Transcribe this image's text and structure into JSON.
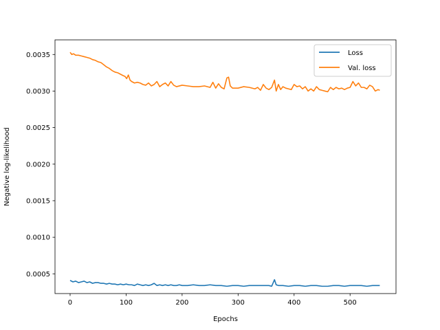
{
  "chart_data": {
    "type": "line",
    "title": "",
    "xlabel": "Epochs",
    "ylabel": "Negative log-likelihood",
    "xlim": [
      -27,
      582
    ],
    "ylim": [
      0.00023,
      0.0037
    ],
    "xticks": [
      0,
      100,
      200,
      300,
      400,
      500
    ],
    "xtick_labels": [
      "0",
      "100",
      "200",
      "300",
      "400",
      "500"
    ],
    "yticks": [
      0.0005,
      0.001,
      0.0015,
      0.002,
      0.0025,
      0.003,
      0.0035
    ],
    "ytick_labels": [
      "0.0005",
      "0.0010",
      "0.0015",
      "0.0020",
      "0.0025",
      "0.0030",
      "0.0035"
    ],
    "grid": false,
    "legend_position": "top-right",
    "series": [
      {
        "name": "Loss",
        "color": "#1f77b4",
        "x": [
          0,
          5,
          10,
          15,
          20,
          25,
          30,
          35,
          40,
          45,
          50,
          55,
          60,
          65,
          70,
          75,
          80,
          85,
          90,
          95,
          100,
          105,
          110,
          115,
          120,
          125,
          130,
          135,
          140,
          145,
          150,
          155,
          160,
          165,
          170,
          175,
          180,
          185,
          190,
          195,
          200,
          210,
          220,
          230,
          240,
          250,
          260,
          270,
          280,
          290,
          300,
          310,
          320,
          330,
          340,
          350,
          355,
          360,
          365,
          368,
          372,
          380,
          390,
          400,
          410,
          420,
          430,
          440,
          450,
          460,
          470,
          480,
          490,
          500,
          510,
          520,
          530,
          540,
          550,
          553
        ],
        "y": [
          0.00041,
          0.00039,
          0.0004,
          0.00038,
          0.00039,
          0.0004,
          0.00038,
          0.00039,
          0.00037,
          0.00038,
          0.00038,
          0.00037,
          0.00037,
          0.00036,
          0.00037,
          0.00036,
          0.00036,
          0.00035,
          0.00036,
          0.00035,
          0.00036,
          0.00035,
          0.00035,
          0.00034,
          0.00036,
          0.00035,
          0.00034,
          0.00035,
          0.00034,
          0.00035,
          0.00037,
          0.00034,
          0.00035,
          0.00034,
          0.00035,
          0.00034,
          0.00035,
          0.00034,
          0.00034,
          0.00035,
          0.00034,
          0.00034,
          0.00035,
          0.00034,
          0.00034,
          0.00035,
          0.00034,
          0.00034,
          0.00033,
          0.00034,
          0.00034,
          0.00033,
          0.00034,
          0.00034,
          0.00034,
          0.00034,
          0.00034,
          0.00033,
          0.00042,
          0.00035,
          0.00034,
          0.00034,
          0.00033,
          0.00034,
          0.00034,
          0.00033,
          0.00034,
          0.00034,
          0.00033,
          0.00033,
          0.00034,
          0.00034,
          0.00033,
          0.00034,
          0.00034,
          0.00034,
          0.00033,
          0.00034,
          0.00034,
          0.00034
        ]
      },
      {
        "name": "Val. loss",
        "color": "#ff7f0e",
        "x": [
          0,
          3,
          6,
          10,
          15,
          20,
          25,
          30,
          35,
          40,
          45,
          50,
          55,
          60,
          65,
          70,
          75,
          80,
          85,
          90,
          95,
          98,
          101,
          104,
          107,
          110,
          115,
          120,
          125,
          130,
          135,
          140,
          145,
          150,
          155,
          160,
          165,
          170,
          175,
          180,
          185,
          190,
          200,
          210,
          220,
          230,
          240,
          250,
          255,
          260,
          265,
          270,
          275,
          280,
          283,
          286,
          290,
          300,
          310,
          320,
          330,
          335,
          340,
          345,
          350,
          355,
          360,
          365,
          368,
          372,
          376,
          380,
          385,
          390,
          395,
          400,
          405,
          410,
          415,
          420,
          425,
          430,
          435,
          440,
          445,
          450,
          455,
          460,
          465,
          470,
          475,
          480,
          485,
          490,
          495,
          500,
          505,
          510,
          515,
          520,
          525,
          530,
          535,
          540,
          545,
          550,
          553
        ],
        "y": [
          0.00353,
          0.0035,
          0.00351,
          0.00349,
          0.00349,
          0.00348,
          0.00347,
          0.00346,
          0.00345,
          0.00343,
          0.00342,
          0.0034,
          0.00339,
          0.00336,
          0.00333,
          0.00331,
          0.00328,
          0.00326,
          0.00325,
          0.00323,
          0.00321,
          0.0032,
          0.00317,
          0.00322,
          0.00315,
          0.00313,
          0.00311,
          0.00312,
          0.00311,
          0.00309,
          0.00308,
          0.00311,
          0.00307,
          0.00309,
          0.00313,
          0.00306,
          0.00309,
          0.00311,
          0.00307,
          0.00313,
          0.00308,
          0.00306,
          0.00308,
          0.00307,
          0.00306,
          0.00306,
          0.00307,
          0.00305,
          0.00312,
          0.00304,
          0.0031,
          0.00305,
          0.00303,
          0.00318,
          0.00319,
          0.00307,
          0.00304,
          0.00304,
          0.00306,
          0.00305,
          0.00303,
          0.00305,
          0.00301,
          0.00309,
          0.00304,
          0.00302,
          0.00305,
          0.00315,
          0.003,
          0.00309,
          0.00302,
          0.00306,
          0.00304,
          0.00303,
          0.00302,
          0.00309,
          0.00306,
          0.00307,
          0.00303,
          0.00306,
          0.003,
          0.00303,
          0.003,
          0.00306,
          0.00302,
          0.00301,
          0.003,
          0.00299,
          0.00305,
          0.00302,
          0.00305,
          0.00303,
          0.00304,
          0.00302,
          0.00304,
          0.00305,
          0.00313,
          0.00307,
          0.00311,
          0.00305,
          0.00305,
          0.00303,
          0.00308,
          0.00306,
          0.003,
          0.00302,
          0.00301
        ]
      }
    ]
  }
}
